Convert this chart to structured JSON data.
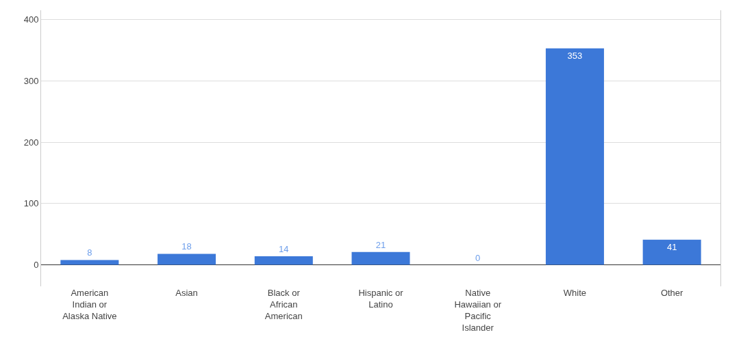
{
  "chart_data": {
    "type": "bar",
    "categories": [
      "American Indian or Alaska Native",
      "Asian",
      "Black or African American",
      "Hispanic or Latino",
      "Native Hawaiian or Pacific Islander",
      "White",
      "Other"
    ],
    "values": [
      8,
      18,
      14,
      21,
      0,
      353,
      41
    ],
    "color": "#3c78d8",
    "ylim": [
      -35,
      415
    ],
    "yticks": [
      0,
      100,
      200,
      300,
      400
    ],
    "grid": "y",
    "data_labels": true
  }
}
